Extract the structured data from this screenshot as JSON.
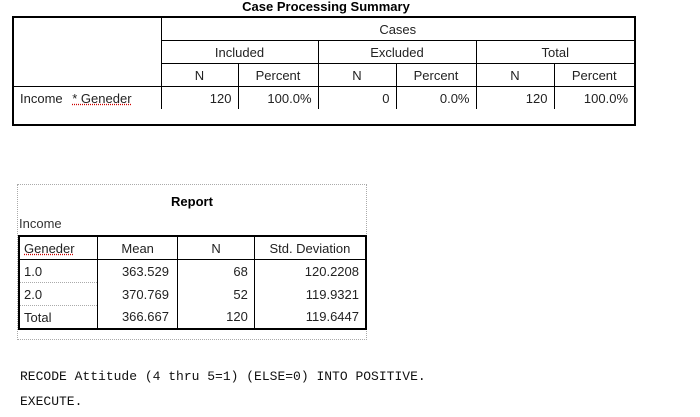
{
  "cps": {
    "title": "Case Processing Summary",
    "cases_header": "Cases",
    "groups": [
      "Included",
      "Excluded",
      "Total"
    ],
    "subheaders": [
      "N",
      "Percent",
      "N",
      "Percent",
      "N",
      "Percent"
    ],
    "row": {
      "label_var": "Income",
      "label_sep": "* Geneder",
      "values": [
        "120",
        "100.0%",
        "0",
        "0.0%",
        "120",
        "100.0%"
      ]
    }
  },
  "report": {
    "title": "Report",
    "subtitle": "Income",
    "headers": [
      "Geneder",
      "Mean",
      "N",
      "Std. Deviation"
    ],
    "rows": [
      [
        "1.0",
        "363.529",
        "68",
        "120.2208"
      ],
      [
        "2.0",
        "370.769",
        "52",
        "119.9321"
      ],
      [
        "Total",
        "366.667",
        "120",
        "119.6447"
      ]
    ]
  },
  "syntax": {
    "line1": "RECODE Attitude (4 thru 5=1) (ELSE=0) INTO POSITIVE.",
    "line2": "EXECUTE."
  }
}
